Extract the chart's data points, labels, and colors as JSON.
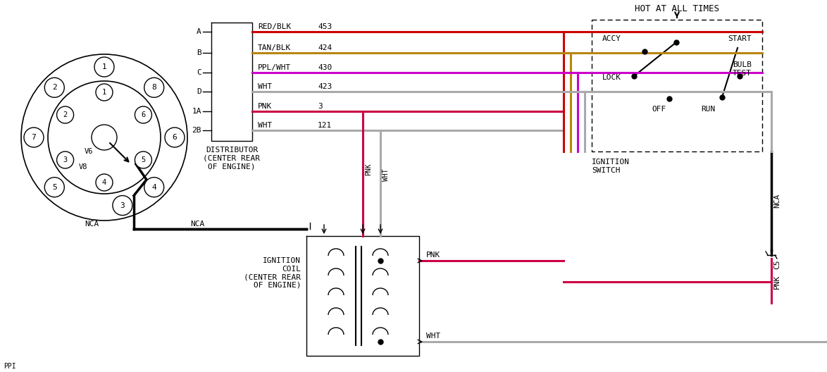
{
  "bg_color": "#ffffff",
  "wire_A": {
    "color": "#cc0000",
    "label": "RED/BLK",
    "circuit": "453"
  },
  "wire_B": {
    "color": "#b8860b",
    "label": "TAN/BLK",
    "circuit": "424"
  },
  "wire_C": {
    "color": "#cc00cc",
    "label": "PPL/WHT",
    "circuit": "430"
  },
  "wire_D": {
    "color": "#aaaaaa",
    "label": "WHT",
    "circuit": "423"
  },
  "wire_1A": {
    "color": "#cc0044",
    "label": "PNK",
    "circuit": "3"
  },
  "wire_2B": {
    "color": "#aaaaaa",
    "label": "WHT",
    "circuit": "121"
  },
  "distributor_label": "DISTRIBUTOR\n(CENTER REAR\nOF ENGINE)",
  "ignition_coil_label": "IGNITION\nCOIL\n(CENTER REAR\nOF ENGINE)",
  "ignition_switch_label": "IGNITION\nSWITCH",
  "hot_at_all_times": "HOT AT ALL TIMES"
}
